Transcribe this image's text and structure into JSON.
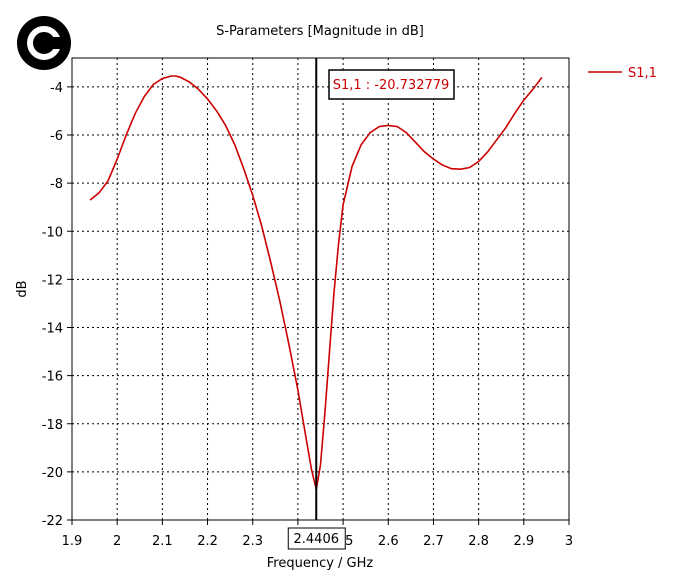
{
  "logo": {
    "glyph": "C"
  },
  "chart_data": {
    "type": "line",
    "title": "S-Parameters [Magnitude in dB]",
    "xlabel": "Frequency / GHz",
    "ylabel": "dB",
    "xlim": [
      1.9,
      3.0
    ],
    "ylim": [
      -22,
      -2.8
    ],
    "xticks": [
      "1.9",
      "2",
      "2.1",
      "2.2",
      "2.3",
      "2.4",
      "2.5",
      "2.6",
      "2.7",
      "2.8",
      "2.9",
      "3"
    ],
    "yticks": [
      "-4",
      "-6",
      "-8",
      "-10",
      "-12",
      "-14",
      "-16",
      "-18",
      "-20",
      "-22"
    ],
    "grid": true,
    "legend": {
      "position": "top-right",
      "entries": [
        "S1,1"
      ]
    },
    "series": [
      {
        "name": "S1,1",
        "color": "#cc0000",
        "x": [
          1.94,
          1.96,
          1.98,
          2.0,
          2.02,
          2.04,
          2.06,
          2.08,
          2.1,
          2.12,
          2.13,
          2.14,
          2.16,
          2.18,
          2.2,
          2.22,
          2.24,
          2.26,
          2.28,
          2.3,
          2.32,
          2.34,
          2.36,
          2.38,
          2.4,
          2.42,
          2.43,
          2.4406,
          2.45,
          2.46,
          2.47,
          2.48,
          2.49,
          2.5,
          2.52,
          2.54,
          2.56,
          2.58,
          2.6,
          2.62,
          2.64,
          2.66,
          2.68,
          2.7,
          2.72,
          2.74,
          2.76,
          2.78,
          2.8,
          2.82,
          2.84,
          2.86,
          2.88,
          2.9,
          2.92,
          2.94
        ],
        "y": [
          -8.7,
          -8.4,
          -7.9,
          -7.0,
          -6.0,
          -5.1,
          -4.4,
          -3.9,
          -3.65,
          -3.55,
          -3.55,
          -3.6,
          -3.8,
          -4.1,
          -4.5,
          -5.0,
          -5.6,
          -6.4,
          -7.4,
          -8.5,
          -9.8,
          -11.3,
          -12.9,
          -14.7,
          -16.6,
          -18.8,
          -19.9,
          -20.732779,
          -19.7,
          -17.5,
          -15.0,
          -12.5,
          -10.5,
          -8.9,
          -7.3,
          -6.4,
          -5.9,
          -5.65,
          -5.6,
          -5.65,
          -5.9,
          -6.3,
          -6.7,
          -7.0,
          -7.25,
          -7.4,
          -7.42,
          -7.35,
          -7.1,
          -6.7,
          -6.2,
          -5.7,
          -5.1,
          -4.55,
          -4.1,
          -3.6
        ]
      }
    ],
    "marker": {
      "x": 2.4406,
      "x_label": "2.4406",
      "readout": "S1,1 : -20.732779"
    }
  }
}
